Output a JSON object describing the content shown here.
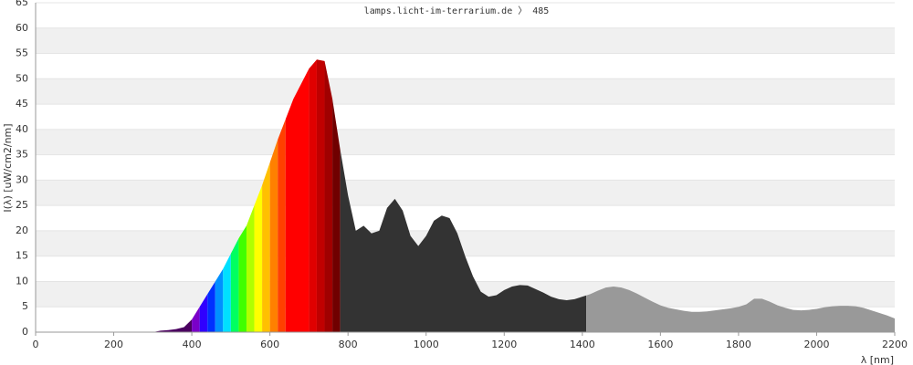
{
  "chart_data": {
    "type": "area",
    "title": "lamps.licht-im-terrarium.de 〉 485",
    "x_label": "λ [nm]",
    "y_label": "I(λ)  [uW/cm2/nm]",
    "x": [
      300,
      320,
      340,
      360,
      380,
      400,
      420,
      440,
      460,
      480,
      500,
      520,
      540,
      560,
      580,
      600,
      620,
      640,
      660,
      680,
      700,
      720,
      740,
      760,
      780,
      800,
      820,
      840,
      860,
      880,
      900,
      920,
      940,
      960,
      980,
      1000,
      1020,
      1040,
      1060,
      1080,
      1100,
      1120,
      1140,
      1160,
      1180,
      1200,
      1220,
      1240,
      1260,
      1280,
      1300,
      1320,
      1340,
      1360,
      1380,
      1400,
      1420,
      1440,
      1460,
      1480,
      1500,
      1520,
      1540,
      1560,
      1580,
      1600,
      1620,
      1640,
      1660,
      1680,
      1700,
      1720,
      1740,
      1760,
      1780,
      1800,
      1820,
      1840,
      1860,
      1880,
      1900,
      1920,
      1940,
      1960,
      1980,
      2000,
      2020,
      2040,
      2060,
      2080,
      2100,
      2120,
      2140,
      2160,
      2180,
      2200
    ],
    "values": [
      0,
      0.3,
      0.4,
      0.6,
      1.0,
      2.5,
      5,
      7.5,
      10,
      12.5,
      15.5,
      18.5,
      21,
      25,
      29,
      33.5,
      38,
      42,
      46,
      49,
      52,
      53.8,
      53.5,
      46,
      36,
      27,
      20,
      21,
      19.5,
      20,
      24.5,
      26.3,
      24,
      19,
      17,
      19,
      22,
      23,
      22.5,
      19.5,
      15,
      11,
      8,
      7,
      7.3,
      8.3,
      9,
      9.3,
      9.2,
      8.5,
      7.8,
      7,
      6.5,
      6.3,
      6.5,
      7,
      7.5,
      8.2,
      8.8,
      9,
      8.8,
      8.3,
      7.6,
      6.8,
      6,
      5.3,
      4.8,
      4.5,
      4.2,
      4.0,
      4.0,
      4.1,
      4.3,
      4.5,
      4.7,
      5.0,
      5.5,
      6.6,
      6.6,
      6.0,
      5.3,
      4.8,
      4.4,
      4.3,
      4.4,
      4.6,
      4.9,
      5.1,
      5.2,
      5.2,
      5.1,
      4.8,
      4.3,
      3.8,
      3.3,
      2.7
    ],
    "color_bands": [
      {
        "from": 300,
        "to": 400,
        "color": "#4b0060"
      },
      {
        "from": 400,
        "to": 420,
        "color": "#7a00c8"
      },
      {
        "from": 420,
        "to": 440,
        "color": "#3000ff"
      },
      {
        "from": 440,
        "to": 460,
        "color": "#0030ff"
      },
      {
        "from": 460,
        "to": 480,
        "color": "#0090ff"
      },
      {
        "from": 480,
        "to": 500,
        "color": "#00e0ff"
      },
      {
        "from": 500,
        "to": 520,
        "color": "#00ff60"
      },
      {
        "from": 520,
        "to": 540,
        "color": "#40ff00"
      },
      {
        "from": 540,
        "to": 560,
        "color": "#b0ff00"
      },
      {
        "from": 560,
        "to": 580,
        "color": "#ffff00"
      },
      {
        "from": 580,
        "to": 600,
        "color": "#ffc000"
      },
      {
        "from": 600,
        "to": 620,
        "color": "#ff8000"
      },
      {
        "from": 620,
        "to": 640,
        "color": "#ff4000"
      },
      {
        "from": 640,
        "to": 700,
        "color": "#ff0000"
      },
      {
        "from": 700,
        "to": 720,
        "color": "#e00000"
      },
      {
        "from": 720,
        "to": 740,
        "color": "#c00000"
      },
      {
        "from": 740,
        "to": 760,
        "color": "#a00000"
      },
      {
        "from": 760,
        "to": 780,
        "color": "#700000"
      },
      {
        "from": 780,
        "to": 1410,
        "color": "#333333"
      },
      {
        "from": 1410,
        "to": 2200,
        "color": "#999999"
      }
    ],
    "xlim": [
      0,
      2200
    ],
    "xticks": [
      0,
      200,
      400,
      600,
      800,
      1000,
      1200,
      1400,
      1600,
      1800,
      2000,
      2200
    ],
    "ylim": [
      0,
      65
    ],
    "yticks": [
      0,
      5,
      10,
      15,
      20,
      25,
      30,
      35,
      40,
      45,
      50,
      55,
      60,
      65
    ],
    "grid": "bands",
    "grid_color": "#f0f0f0"
  }
}
